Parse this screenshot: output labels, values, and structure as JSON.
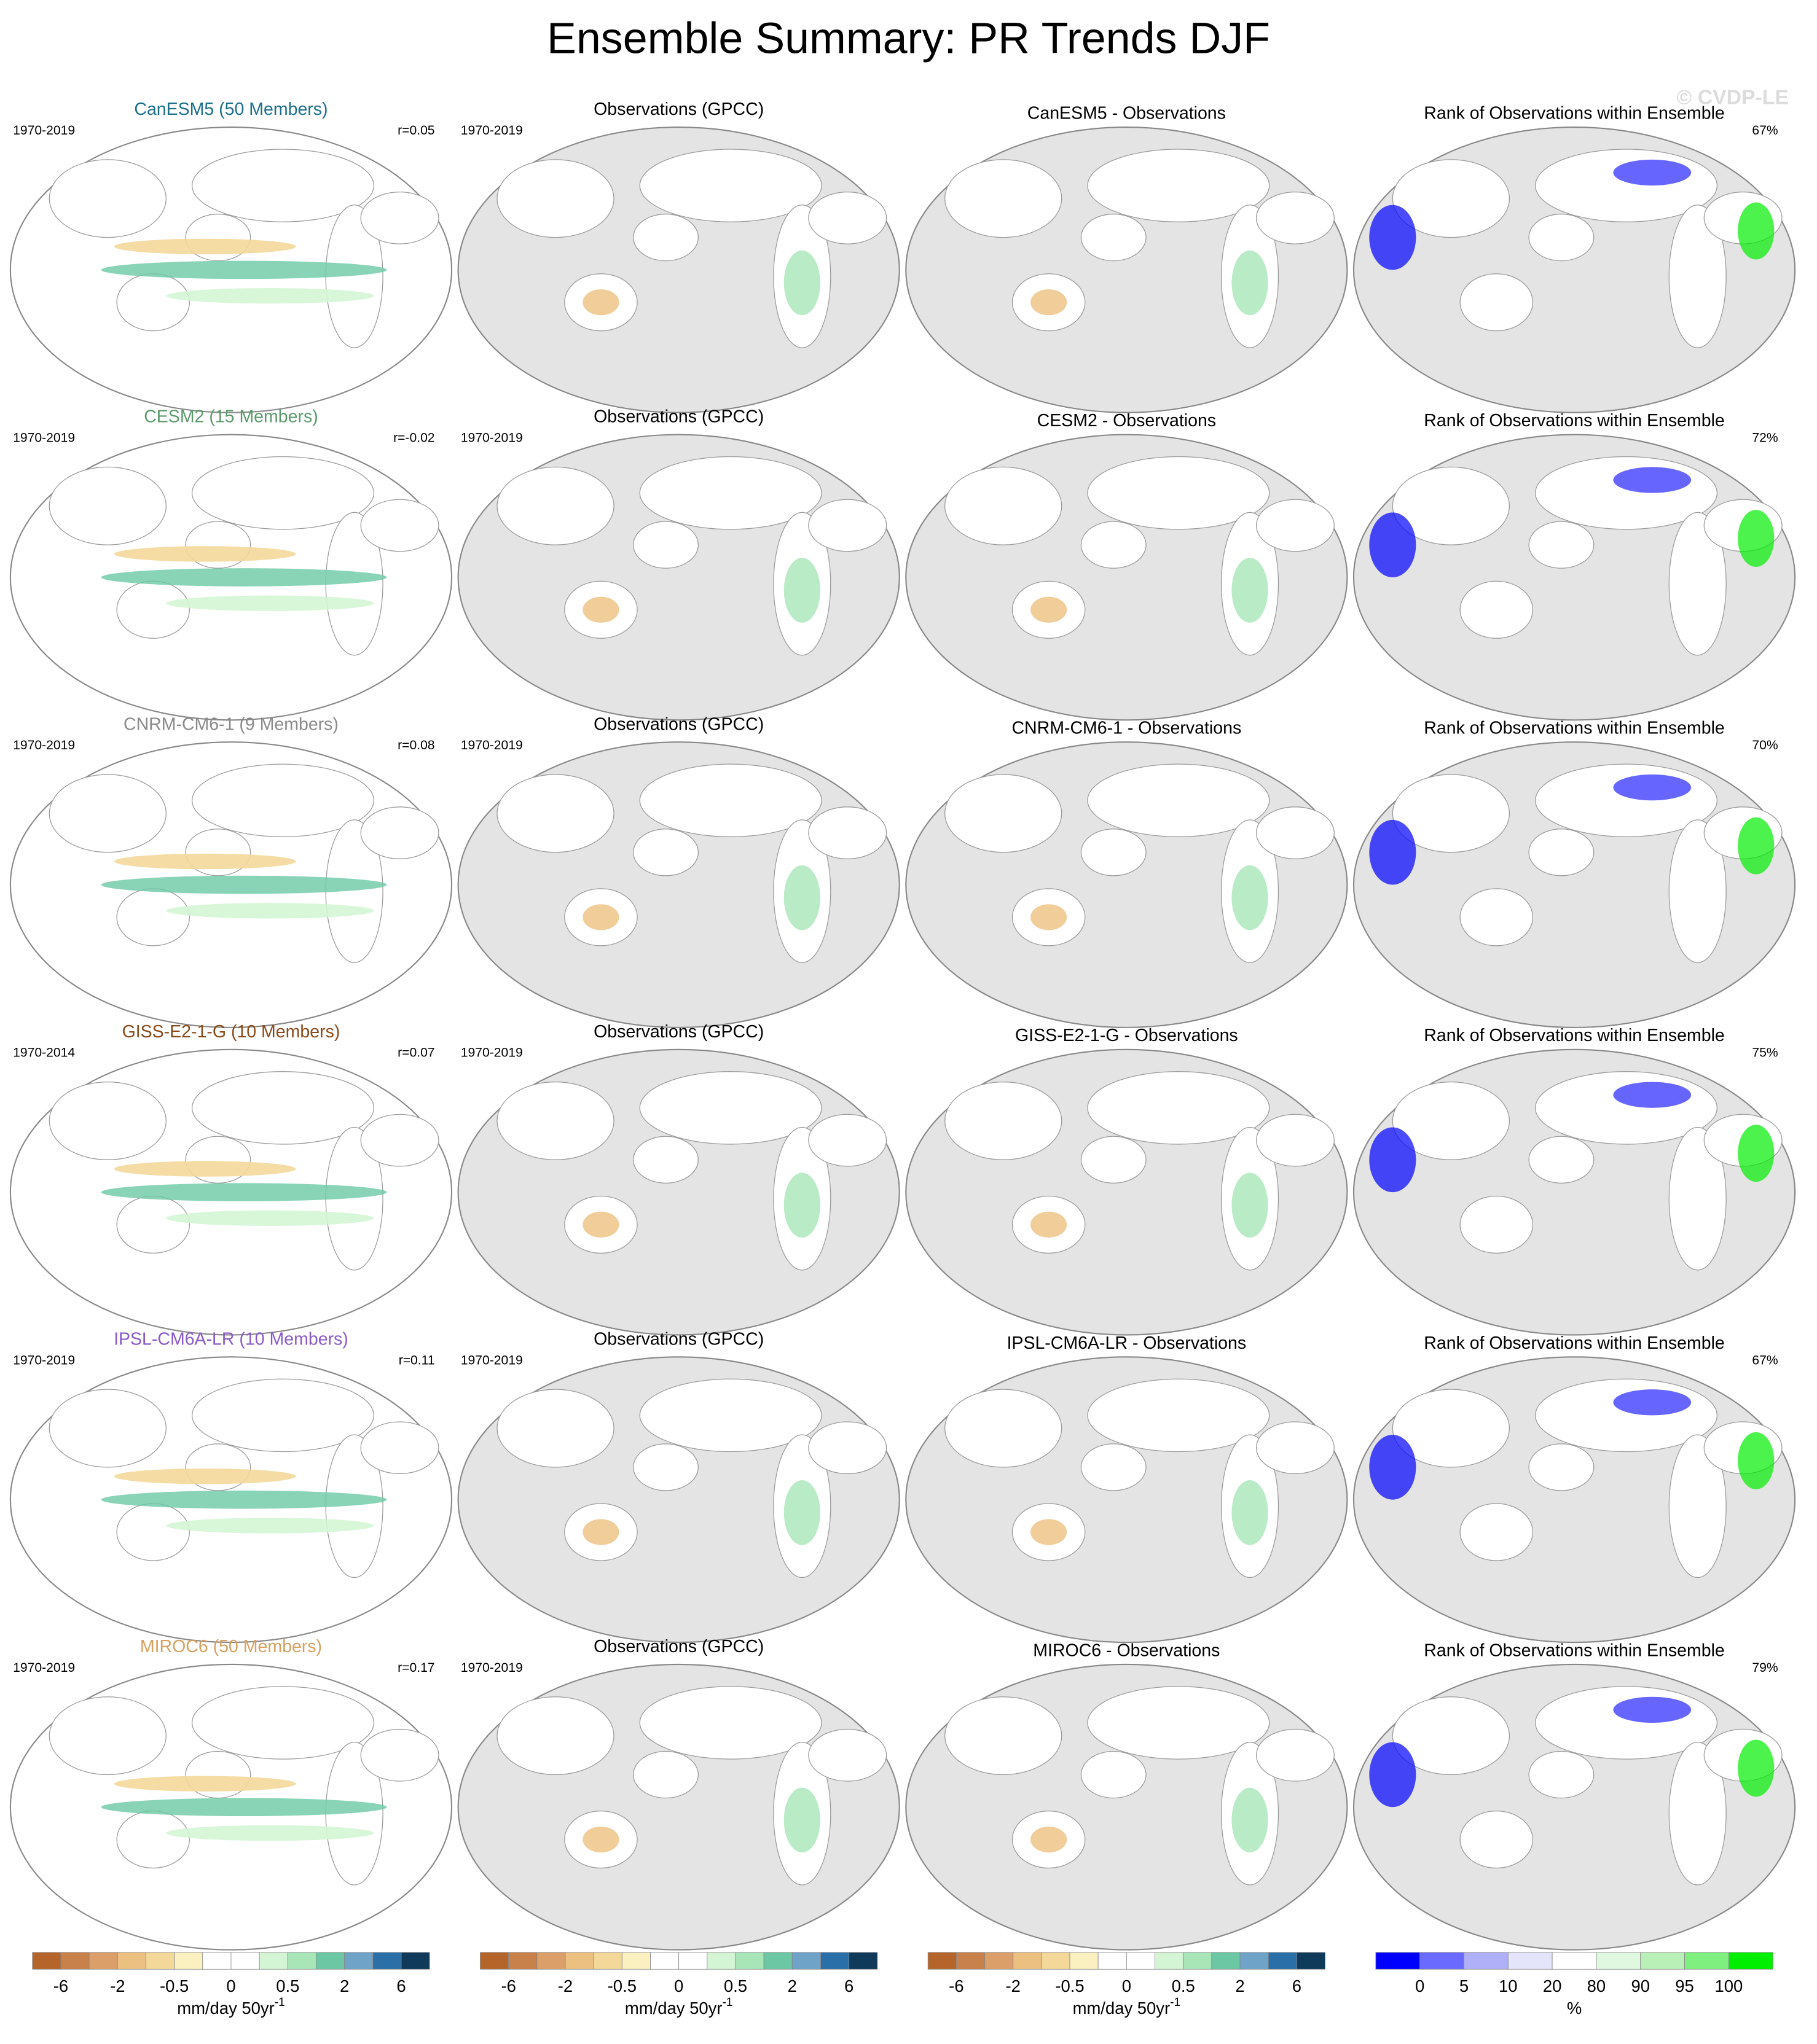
{
  "title": "Ensemble Summary: PR Trends DJF",
  "watermark": "© CVDP-LE",
  "rows": [
    {
      "model_title": "CanESM5 (50 Members)",
      "model_color": "#1b6f8a",
      "model_period": "1970-2019",
      "r": "r=0.05",
      "obs_title": "Observations (GPCC)",
      "obs_period": "1970-2019",
      "diff_title": "CanESM5 - Observations",
      "rank_title": "Rank of Observations within Ensemble",
      "rank_pct": "67%"
    },
    {
      "model_title": "CESM2 (15 Members)",
      "model_color": "#5a9a6a",
      "model_period": "1970-2019",
      "r": "r=-0.02",
      "obs_title": "Observations (GPCC)",
      "obs_period": "1970-2019",
      "diff_title": "CESM2 - Observations",
      "rank_title": "Rank of Observations within Ensemble",
      "rank_pct": "72%"
    },
    {
      "model_title": "CNRM-CM6-1 (9 Members)",
      "model_color": "#8a8a8a",
      "model_period": "1970-2019",
      "r": "r=0.08",
      "obs_title": "Observations (GPCC)",
      "obs_period": "1970-2019",
      "diff_title": "CNRM-CM6-1 - Observations",
      "rank_title": "Rank of Observations within Ensemble",
      "rank_pct": "70%"
    },
    {
      "model_title": "GISS-E2-1-G (10 Members)",
      "model_color": "#8b4a1a",
      "model_period": "1970-2014",
      "r": "r=0.07",
      "obs_title": "Observations (GPCC)",
      "obs_period": "1970-2019",
      "diff_title": "GISS-E2-1-G - Observations",
      "rank_title": "Rank of Observations within Ensemble",
      "rank_pct": "75%"
    },
    {
      "model_title": "IPSL-CM6A-LR (10 Members)",
      "model_color": "#8a5ac8",
      "model_period": "1970-2019",
      "r": "r=0.11",
      "obs_title": "Observations (GPCC)",
      "obs_period": "1970-2019",
      "diff_title": "IPSL-CM6A-LR - Observations",
      "rank_title": "Rank of Observations within Ensemble",
      "rank_pct": "67%"
    },
    {
      "model_title": "MIROC6 (50 Members)",
      "model_color": "#d9a060",
      "model_period": "1970-2019",
      "r": "r=0.17",
      "obs_title": "Observations (GPCC)",
      "obs_period": "1970-2019",
      "diff_title": "MIROC6 - Observations",
      "rank_title": "Rank of Observations within Ensemble",
      "rank_pct": "79%"
    }
  ],
  "colorbars": [
    {
      "colors": [
        "#b5652a",
        "#c8814a",
        "#dba06a",
        "#ecc080",
        "#f3d89a",
        "#faf0c0",
        "#ffffff",
        "#ffffff",
        "#d4f5d4",
        "#a8e6b8",
        "#6cc8a4",
        "#6fa4c8",
        "#2a6fa8",
        "#0f3a5a"
      ],
      "labels": [
        "-6",
        "-2",
        "-0.5",
        "0",
        "0.5",
        "2",
        "6"
      ],
      "units": "mm/day 50yr",
      "units_exp": "-1"
    },
    {
      "colors": [
        "#b5652a",
        "#c8814a",
        "#dba06a",
        "#ecc080",
        "#f3d89a",
        "#faf0c0",
        "#ffffff",
        "#ffffff",
        "#d4f5d4",
        "#a8e6b8",
        "#6cc8a4",
        "#6fa4c8",
        "#2a6fa8",
        "#0f3a5a"
      ],
      "labels": [
        "-6",
        "-2",
        "-0.5",
        "0",
        "0.5",
        "2",
        "6"
      ],
      "units": "mm/day 50yr",
      "units_exp": "-1"
    },
    {
      "colors": [
        "#b5652a",
        "#c8814a",
        "#dba06a",
        "#ecc080",
        "#f3d89a",
        "#faf0c0",
        "#ffffff",
        "#ffffff",
        "#d4f5d4",
        "#a8e6b8",
        "#6cc8a4",
        "#6fa4c8",
        "#2a6fa8",
        "#0f3a5a"
      ],
      "labels": [
        "-6",
        "-2",
        "-0.5",
        "0",
        "0.5",
        "2",
        "6"
      ],
      "units": "mm/day 50yr",
      "units_exp": "-1"
    },
    {
      "colors": [
        "#0000ff",
        "#6a6aff",
        "#b0b0f8",
        "#e4e4fa",
        "#ffffff",
        "#e0f8e0",
        "#b8f0b8",
        "#7ff07f",
        "#00ee00"
      ],
      "labels": [
        "0",
        "5",
        "10",
        "20",
        "80",
        "90",
        "95",
        "100"
      ],
      "units": "%"
    }
  ]
}
